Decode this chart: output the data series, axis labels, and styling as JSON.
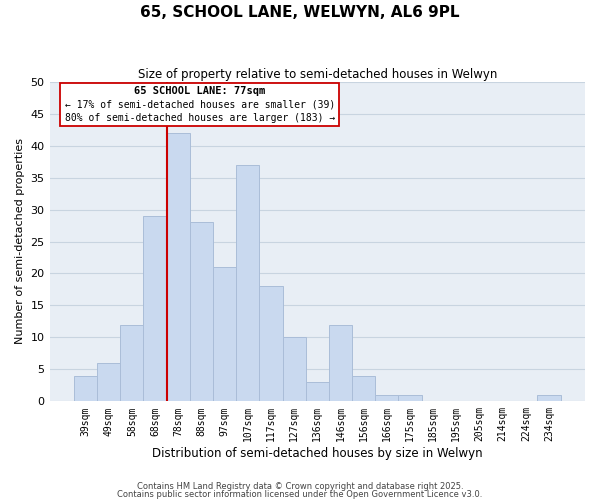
{
  "title": "65, SCHOOL LANE, WELWYN, AL6 9PL",
  "subtitle": "Size of property relative to semi-detached houses in Welwyn",
  "xlabel": "Distribution of semi-detached houses by size in Welwyn",
  "ylabel": "Number of semi-detached properties",
  "bar_labels": [
    "39sqm",
    "49sqm",
    "58sqm",
    "68sqm",
    "78sqm",
    "88sqm",
    "97sqm",
    "107sqm",
    "117sqm",
    "127sqm",
    "136sqm",
    "146sqm",
    "156sqm",
    "166sqm",
    "175sqm",
    "185sqm",
    "195sqm",
    "205sqm",
    "214sqm",
    "224sqm",
    "234sqm"
  ],
  "bar_heights": [
    4,
    6,
    12,
    29,
    42,
    28,
    21,
    37,
    18,
    10,
    3,
    12,
    4,
    1,
    1,
    0,
    0,
    0,
    0,
    0,
    1
  ],
  "bar_color": "#c9d9ef",
  "bar_edge_color": "#aabdd8",
  "annotation_title": "65 SCHOOL LANE: 77sqm",
  "annotation_line1": "← 17% of semi-detached houses are smaller (39)",
  "annotation_line2": "80% of semi-detached houses are larger (183) →",
  "vline_color": "#cc0000",
  "ylim": [
    0,
    50
  ],
  "yticks": [
    0,
    5,
    10,
    15,
    20,
    25,
    30,
    35,
    40,
    45,
    50
  ],
  "plot_bg_color": "#e8eef5",
  "grid_color": "#c8d4e0",
  "footnote1": "Contains HM Land Registry data © Crown copyright and database right 2025.",
  "footnote2": "Contains public sector information licensed under the Open Government Licence v3.0."
}
